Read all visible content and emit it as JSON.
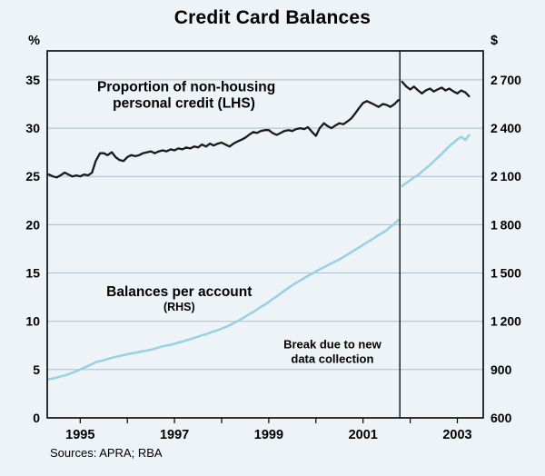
{
  "page": {
    "title": "Credit Card Balances",
    "sources": "Sources: APRA; RBA"
  },
  "chart_data": {
    "type": "line",
    "title": "Credit Card Balances",
    "style": {
      "background": "#edf3f6",
      "grid_color": "#a9bfc9",
      "frame_color": "#000000",
      "lhs_line_color": "#1a1a1a",
      "rhs_line_color": "#96d1e6"
    },
    "left_axis": {
      "unit": "%",
      "min": 0,
      "max": 38,
      "ticks": [
        0,
        5,
        10,
        15,
        20,
        25,
        30,
        35
      ]
    },
    "right_axis": {
      "unit": "$",
      "min": 600,
      "max": 2880,
      "ticks": [
        600,
        900,
        1200,
        1500,
        1800,
        2100,
        2400,
        2700
      ],
      "labels": [
        "600",
        "900",
        "1 200",
        "1 500",
        "1 800",
        "2 100",
        "2 400",
        "2 700"
      ]
    },
    "x_axis": {
      "min": 1994.3,
      "max": 2003.55,
      "tick_years": [
        1995,
        1996,
        1997,
        1998,
        1999,
        2000,
        2001,
        2002,
        2003
      ],
      "year_labels": [
        {
          "t": 1995,
          "label": "1995"
        },
        {
          "t": 1997,
          "label": "1997"
        },
        {
          "t": 1999,
          "label": "1999"
        },
        {
          "t": 2001,
          "label": "2001"
        },
        {
          "t": 2003,
          "label": "2003"
        }
      ]
    },
    "break_x": 2001.78,
    "series": [
      {
        "id": "series-proportion-lhs",
        "name": "Proportion of non-housing personal credit (LHS)",
        "axis": "left",
        "color": "#1a1a1a",
        "width": 2.3,
        "segments": [
          [
            [
              1994.33,
              25.2
            ],
            [
              1994.42,
              25.0
            ],
            [
              1994.5,
              24.9
            ],
            [
              1994.58,
              25.1
            ],
            [
              1994.67,
              25.4
            ],
            [
              1994.75,
              25.2
            ],
            [
              1994.83,
              25.0
            ],
            [
              1994.92,
              25.1
            ],
            [
              1995.0,
              25.0
            ],
            [
              1995.08,
              25.2
            ],
            [
              1995.17,
              25.1
            ],
            [
              1995.25,
              25.4
            ],
            [
              1995.33,
              26.6
            ],
            [
              1995.42,
              27.4
            ],
            [
              1995.5,
              27.4
            ],
            [
              1995.58,
              27.2
            ],
            [
              1995.67,
              27.5
            ],
            [
              1995.75,
              27.0
            ],
            [
              1995.83,
              26.7
            ],
            [
              1995.92,
              26.6
            ],
            [
              1996.0,
              27.0
            ],
            [
              1996.08,
              27.2
            ],
            [
              1996.17,
              27.1
            ],
            [
              1996.25,
              27.2
            ],
            [
              1996.33,
              27.4
            ],
            [
              1996.42,
              27.5
            ],
            [
              1996.5,
              27.6
            ],
            [
              1996.58,
              27.4
            ],
            [
              1996.67,
              27.6
            ],
            [
              1996.75,
              27.7
            ],
            [
              1996.83,
              27.6
            ],
            [
              1996.92,
              27.8
            ],
            [
              1997.0,
              27.7
            ],
            [
              1997.08,
              27.9
            ],
            [
              1997.17,
              27.8
            ],
            [
              1997.25,
              28.0
            ],
            [
              1997.33,
              27.9
            ],
            [
              1997.42,
              28.1
            ],
            [
              1997.5,
              28.0
            ],
            [
              1997.58,
              28.3
            ],
            [
              1997.67,
              28.1
            ],
            [
              1997.75,
              28.4
            ],
            [
              1997.83,
              28.2
            ],
            [
              1997.92,
              28.4
            ],
            [
              1998.0,
              28.5
            ],
            [
              1998.08,
              28.3
            ],
            [
              1998.17,
              28.1
            ],
            [
              1998.25,
              28.4
            ],
            [
              1998.33,
              28.6
            ],
            [
              1998.42,
              28.8
            ],
            [
              1998.5,
              29.0
            ],
            [
              1998.58,
              29.3
            ],
            [
              1998.67,
              29.6
            ],
            [
              1998.75,
              29.5
            ],
            [
              1998.83,
              29.7
            ],
            [
              1998.92,
              29.8
            ],
            [
              1999.0,
              29.8
            ],
            [
              1999.08,
              29.5
            ],
            [
              1999.17,
              29.3
            ],
            [
              1999.25,
              29.5
            ],
            [
              1999.33,
              29.7
            ],
            [
              1999.42,
              29.8
            ],
            [
              1999.5,
              29.7
            ],
            [
              1999.58,
              29.9
            ],
            [
              1999.67,
              30.0
            ],
            [
              1999.75,
              29.9
            ],
            [
              1999.83,
              30.1
            ],
            [
              1999.92,
              29.6
            ],
            [
              2000.0,
              29.2
            ],
            [
              2000.08,
              30.0
            ],
            [
              2000.17,
              30.5
            ],
            [
              2000.25,
              30.2
            ],
            [
              2000.33,
              30.0
            ],
            [
              2000.42,
              30.3
            ],
            [
              2000.5,
              30.5
            ],
            [
              2000.58,
              30.4
            ],
            [
              2000.67,
              30.7
            ],
            [
              2000.75,
              31.0
            ],
            [
              2000.83,
              31.5
            ],
            [
              2000.92,
              32.1
            ],
            [
              2001.0,
              32.6
            ],
            [
              2001.08,
              32.8
            ],
            [
              2001.17,
              32.6
            ],
            [
              2001.25,
              32.4
            ],
            [
              2001.33,
              32.2
            ],
            [
              2001.42,
              32.5
            ],
            [
              2001.5,
              32.4
            ],
            [
              2001.58,
              32.2
            ],
            [
              2001.67,
              32.5
            ],
            [
              2001.75,
              32.9
            ]
          ],
          [
            [
              2001.83,
              34.8
            ],
            [
              2001.92,
              34.3
            ],
            [
              2002.0,
              34.0
            ],
            [
              2002.08,
              34.3
            ],
            [
              2002.17,
              33.9
            ],
            [
              2002.25,
              33.6
            ],
            [
              2002.33,
              33.9
            ],
            [
              2002.42,
              34.1
            ],
            [
              2002.5,
              33.8
            ],
            [
              2002.58,
              34.0
            ],
            [
              2002.67,
              34.2
            ],
            [
              2002.75,
              33.9
            ],
            [
              2002.83,
              34.1
            ],
            [
              2002.92,
              33.8
            ],
            [
              2003.0,
              33.6
            ],
            [
              2003.08,
              33.9
            ],
            [
              2003.17,
              33.7
            ],
            [
              2003.25,
              33.3
            ]
          ]
        ]
      },
      {
        "id": "series-balances-rhs",
        "name": "Balances per account (RHS)",
        "axis": "right",
        "color": "#96d1e6",
        "width": 2.5,
        "segments": [
          [
            [
              1994.33,
              840
            ],
            [
              1994.42,
              845
            ],
            [
              1994.5,
              850
            ],
            [
              1994.58,
              856
            ],
            [
              1994.67,
              864
            ],
            [
              1994.75,
              871
            ],
            [
              1994.83,
              880
            ],
            [
              1994.92,
              890
            ],
            [
              1995.0,
              900
            ],
            [
              1995.08,
              912
            ],
            [
              1995.17,
              922
            ],
            [
              1995.25,
              934
            ],
            [
              1995.33,
              946
            ],
            [
              1995.42,
              953
            ],
            [
              1995.5,
              958
            ],
            [
              1995.58,
              965
            ],
            [
              1995.67,
              973
            ],
            [
              1995.75,
              979
            ],
            [
              1995.83,
              984
            ],
            [
              1995.92,
              990
            ],
            [
              1996.0,
              995
            ],
            [
              1996.08,
              1000
            ],
            [
              1996.17,
              1004
            ],
            [
              1996.25,
              1009
            ],
            [
              1996.33,
              1014
            ],
            [
              1996.42,
              1019
            ],
            [
              1996.5,
              1024
            ],
            [
              1996.58,
              1030
            ],
            [
              1996.67,
              1038
            ],
            [
              1996.75,
              1044
            ],
            [
              1996.83,
              1049
            ],
            [
              1996.92,
              1054
            ],
            [
              1997.0,
              1060
            ],
            [
              1997.08,
              1068
            ],
            [
              1997.17,
              1074
            ],
            [
              1997.25,
              1082
            ],
            [
              1997.33,
              1089
            ],
            [
              1997.42,
              1097
            ],
            [
              1997.5,
              1104
            ],
            [
              1997.58,
              1113
            ],
            [
              1997.67,
              1120
            ],
            [
              1997.75,
              1129
            ],
            [
              1997.83,
              1137
            ],
            [
              1997.92,
              1145
            ],
            [
              1998.0,
              1154
            ],
            [
              1998.08,
              1164
            ],
            [
              1998.17,
              1175
            ],
            [
              1998.25,
              1188
            ],
            [
              1998.33,
              1200
            ],
            [
              1998.42,
              1214
            ],
            [
              1998.5,
              1228
            ],
            [
              1998.58,
              1243
            ],
            [
              1998.67,
              1258
            ],
            [
              1998.75,
              1274
            ],
            [
              1998.83,
              1289
            ],
            [
              1998.92,
              1304
            ],
            [
              1999.0,
              1320
            ],
            [
              1999.08,
              1338
            ],
            [
              1999.17,
              1355
            ],
            [
              1999.25,
              1373
            ],
            [
              1999.33,
              1390
            ],
            [
              1999.42,
              1408
            ],
            [
              1999.5,
              1424
            ],
            [
              1999.58,
              1439
            ],
            [
              1999.67,
              1454
            ],
            [
              1999.75,
              1468
            ],
            [
              1999.83,
              1482
            ],
            [
              1999.92,
              1496
            ],
            [
              2000.0,
              1510
            ],
            [
              2000.08,
              1523
            ],
            [
              2000.17,
              1535
            ],
            [
              2000.25,
              1548
            ],
            [
              2000.33,
              1560
            ],
            [
              2000.42,
              1573
            ],
            [
              2000.5,
              1585
            ],
            [
              2000.58,
              1599
            ],
            [
              2000.67,
              1614
            ],
            [
              2000.75,
              1629
            ],
            [
              2000.83,
              1644
            ],
            [
              2000.92,
              1659
            ],
            [
              2001.0,
              1675
            ],
            [
              2001.08,
              1690
            ],
            [
              2001.17,
              1705
            ],
            [
              2001.25,
              1720
            ],
            [
              2001.33,
              1736
            ],
            [
              2001.42,
              1751
            ],
            [
              2001.5,
              1766
            ],
            [
              2001.58,
              1786
            ],
            [
              2001.67,
              1806
            ],
            [
              2001.75,
              1830
            ]
          ],
          [
            [
              2001.83,
              2040
            ],
            [
              2001.92,
              2060
            ],
            [
              2002.0,
              2076
            ],
            [
              2002.08,
              2094
            ],
            [
              2002.17,
              2110
            ],
            [
              2002.25,
              2130
            ],
            [
              2002.33,
              2150
            ],
            [
              2002.42,
              2172
            ],
            [
              2002.5,
              2194
            ],
            [
              2002.58,
              2216
            ],
            [
              2002.67,
              2240
            ],
            [
              2002.75,
              2264
            ],
            [
              2002.83,
              2288
            ],
            [
              2002.92,
              2310
            ],
            [
              2003.0,
              2330
            ],
            [
              2003.08,
              2346
            ],
            [
              2003.17,
              2326
            ],
            [
              2003.25,
              2356
            ]
          ]
        ]
      }
    ],
    "annotations": [
      {
        "text": "Proportion of non-housing",
        "t": 1997.25,
        "v": 33.8,
        "size": 15.5,
        "bold": true
      },
      {
        "text": "personal credit (LHS)",
        "t": 1997.2,
        "v": 32.1,
        "size": 15.5,
        "bold": true
      },
      {
        "text": "Balances per account",
        "t": 1997.1,
        "v": 12.6,
        "size": 15.5,
        "bold": true
      },
      {
        "text": "(RHS)",
        "t": 1997.1,
        "v": 11.1,
        "size": 12.5,
        "bold": true
      },
      {
        "text": "Break due to new",
        "t": 2000.35,
        "v": 7.2,
        "size": 13,
        "bold": true
      },
      {
        "text": "data collection",
        "t": 2000.35,
        "v": 5.7,
        "size": 13,
        "bold": true
      }
    ]
  }
}
